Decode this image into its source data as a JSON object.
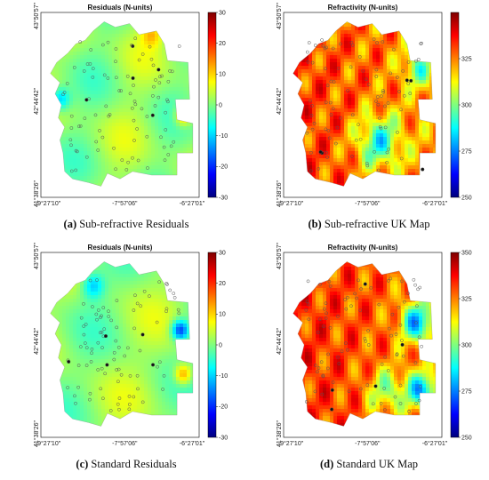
{
  "colors": {
    "map_bg": "#ffffff",
    "frame": "#000000",
    "station_stroke": "#555555",
    "station_dark": "#111111"
  },
  "colormap": [
    "#00007f",
    "#0000ff",
    "#007fff",
    "#00ffff",
    "#7fff7f",
    "#ffff00",
    "#ff7f00",
    "#ff0000",
    "#7f0000"
  ],
  "axes": {
    "y_ticks": [
      "43°50'57\"",
      "42°44'42\"",
      "41°38'26\""
    ],
    "x_ticks": [
      "-9°27'10\"",
      "-7°57'06\"",
      "-6°27'01\""
    ]
  },
  "chart_data": [
    {
      "type": "heatmap",
      "title": "Residuals (N-units)",
      "caption_letter": "(a)",
      "caption_text": " Sub-refractive Residuals",
      "colorbar": {
        "min": -30,
        "max": 30,
        "ticks": [
          "30",
          "20",
          "10",
          "0",
          "-10",
          "-20",
          "-30"
        ]
      },
      "field": "residual_sub",
      "grid": false
    },
    {
      "type": "heatmap",
      "title": "Refractivity (N-units)",
      "caption_letter": "(b)",
      "caption_text": " Sub-refractive UK Map",
      "colorbar": {
        "min": 250,
        "max": 350,
        "ticks": [
          "325",
          "300",
          "275",
          "250"
        ]
      },
      "field": "refractivity_sub",
      "grid": false
    },
    {
      "type": "heatmap",
      "title": "Residuals (N-units)",
      "caption_letter": "(c)",
      "caption_text": " Standard Residuals",
      "colorbar": {
        "min": -30,
        "max": 30,
        "ticks": [
          "30",
          "20",
          "10",
          "0",
          "-10",
          "-20",
          "-30"
        ]
      },
      "field": "residual_std",
      "grid": false
    },
    {
      "type": "heatmap",
      "title": "Refractivity (N-units)",
      "caption_letter": "(d)",
      "caption_text": " Standard UK Map",
      "colorbar": {
        "min": 250,
        "max": 350,
        "ticks": [
          "350",
          "325",
          "300",
          "275",
          "250"
        ]
      },
      "field": "refractivity_std",
      "grid": false
    }
  ]
}
